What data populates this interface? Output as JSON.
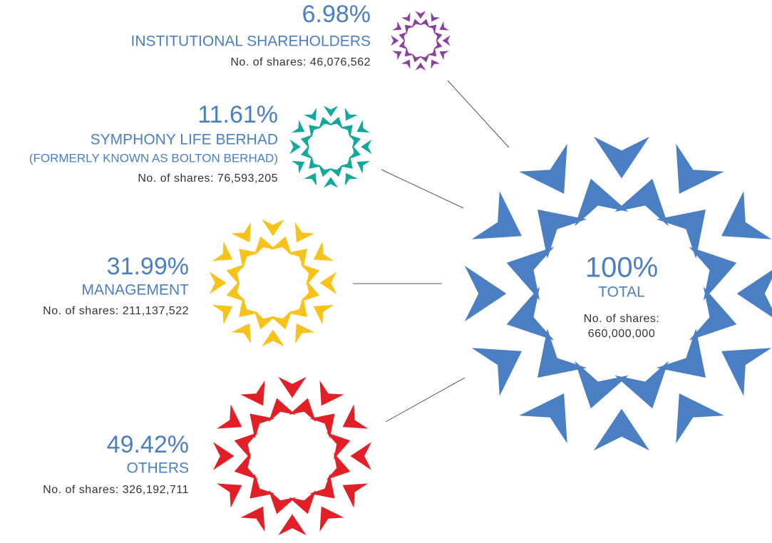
{
  "total": {
    "percent": "100%",
    "label": "TOTAL",
    "shares_label": "No. of shares:",
    "shares": "660,000,000"
  },
  "groups": [
    {
      "percent": "6.98%",
      "label": "INSTITUTIONAL SHAREHOLDERS",
      "shares": "No. of shares: 46,076,562"
    },
    {
      "percent": "11.61%",
      "label": "SYMPHONY LIFE BERHAD",
      "subtitle": "(FORMERLY KNOWN AS BOLTON BERHAD)",
      "shares": "No. of shares: 76,593,205"
    },
    {
      "percent": "31.99%",
      "label": "MANAGEMENT",
      "shares": "No. of shares: 211,137,522"
    },
    {
      "percent": "49.42%",
      "label": "OTHERS",
      "shares": "No. of shares: 326,192,711"
    }
  ]
}
